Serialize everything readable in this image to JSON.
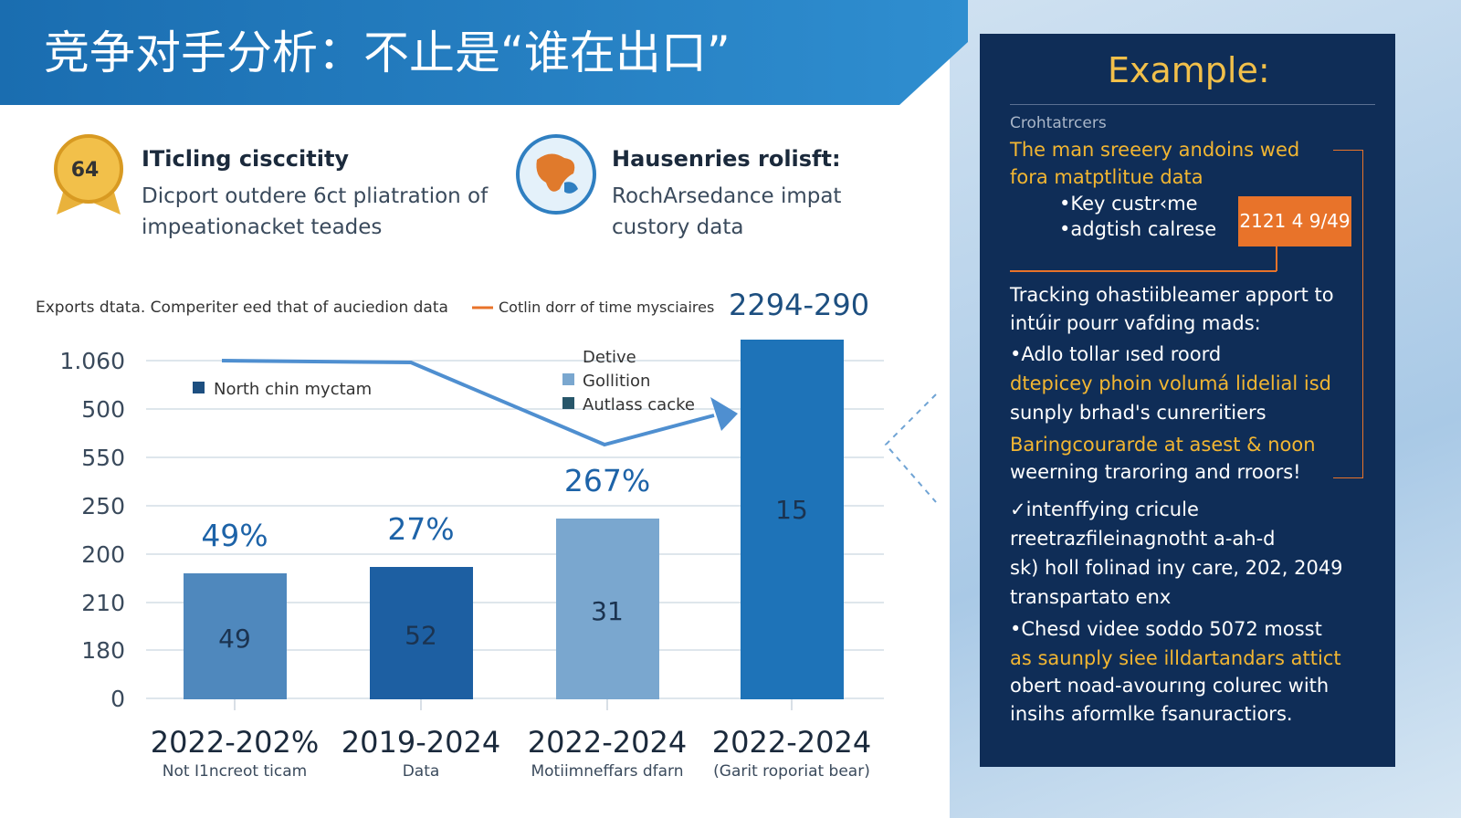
{
  "header": {
    "title": "竞争对手分析：不止是“谁在出口”"
  },
  "cards": [
    {
      "badge": "64",
      "title": "ITicling cisccitity",
      "lines": [
        "Dicport outdere 6ct pliatration of",
        "impeationacket teades"
      ]
    },
    {
      "title": "Hausenries rolisft:",
      "lines": [
        "RochArsedance impat",
        "custory data"
      ]
    }
  ],
  "chart": {
    "caption": "Exports dtata. Comperiter eed that of auciedion data",
    "line_legend": "Cotlin dorr of time mysciaires",
    "headline": "2294-290",
    "y_axis_labels": [
      "1.060",
      "500",
      "550",
      "250",
      "200",
      "210",
      "180",
      "0"
    ],
    "legend": {
      "left": "North chin myctam",
      "title": "Detive",
      "items": [
        "Gollition",
        "Autlass cacke"
      ]
    },
    "bars": [
      {
        "top_label": "49%",
        "inner_label": "49",
        "x_label": "2022-202%",
        "x_sublabel": "Not I1ncreot ticam"
      },
      {
        "top_label": "27%",
        "inner_label": "52",
        "x_label": "2019-2024",
        "x_sublabel": "Data"
      },
      {
        "top_label": "267%",
        "inner_label": "31",
        "x_label": "2022-2024",
        "x_sublabel": "Motiimneffars dfarn"
      },
      {
        "inner_label": "15",
        "x_label": "2022-2024",
        "x_sublabel": "(Garit roporiat bear)"
      }
    ]
  },
  "example": {
    "title": "Example:",
    "subtitle": "Crohtatrcers",
    "badge": "2121 4 9/49",
    "lines": [
      "The man sreeery andoins wed",
      "fora matptlitue data",
      "•Key custr‹me",
      "•adgtish calrese",
      "Tracking ohastiibleamer apport to",
      "intúir pourr vafding mads:",
      "•Adlo tollar ısed roord",
      "dtepicey phoin volumá lidelial isd",
      "sunply brhad's cunreritiers",
      "Baringcourarde at asest & noon",
      "weerning traroring and rroors!",
      "✓intenffying cricule",
      "rreetrazfileinagnotht a-ah-d",
      "sk) holl folinad iny care, 202, 2049",
      "transpartato enx",
      "•Chesd videe soddo 5072 mosst",
      "as saunply siee illdartandars attict",
      "obert noad-avourıng colurec with",
      "insihs aformlke fsanuractiors."
    ]
  }
}
